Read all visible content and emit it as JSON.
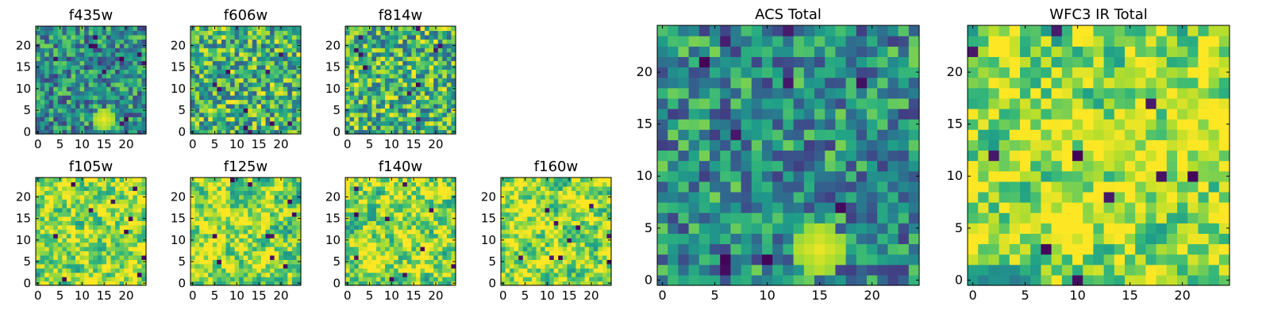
{
  "chart_data": [
    {
      "type": "heatmap",
      "title": "f435w",
      "grid_size": 25,
      "xticks": [
        0,
        5,
        10,
        15,
        20
      ],
      "yticks": [
        0,
        5,
        10,
        15,
        20
      ],
      "colormap": "viridis",
      "seed": 11,
      "texture": "noisy",
      "bright_spots": [
        [
          15,
          3
        ]
      ]
    },
    {
      "type": "heatmap",
      "title": "f606w",
      "grid_size": 25,
      "xticks": [
        0,
        5,
        10,
        15,
        20
      ],
      "yticks": [
        0,
        5,
        10,
        15,
        20
      ],
      "colormap": "viridis",
      "seed": 23,
      "texture": "noisy_bright"
    },
    {
      "type": "heatmap",
      "title": "f814w",
      "grid_size": 25,
      "xticks": [
        0,
        5,
        10,
        15,
        20
      ],
      "yticks": [
        0,
        5,
        10,
        15,
        20
      ],
      "colormap": "viridis",
      "seed": 37,
      "texture": "noisy_bright"
    },
    {
      "type": "heatmap",
      "title": "f105w",
      "grid_size": 25,
      "xticks": [
        0,
        5,
        10,
        15,
        20
      ],
      "yticks": [
        0,
        5,
        10,
        15,
        20
      ],
      "colormap": "viridis",
      "seed": 41,
      "texture": "smooth_bright"
    },
    {
      "type": "heatmap",
      "title": "f125w",
      "grid_size": 25,
      "xticks": [
        0,
        5,
        10,
        15,
        20
      ],
      "yticks": [
        0,
        5,
        10,
        15,
        20
      ],
      "colormap": "viridis",
      "seed": 53,
      "texture": "smooth_bright"
    },
    {
      "type": "heatmap",
      "title": "f140w",
      "grid_size": 25,
      "xticks": [
        0,
        5,
        10,
        15,
        20
      ],
      "yticks": [
        0,
        5,
        10,
        15,
        20
      ],
      "colormap": "viridis",
      "seed": 67,
      "texture": "smooth_bright"
    },
    {
      "type": "heatmap",
      "title": "f160w",
      "grid_size": 25,
      "xticks": [
        0,
        5,
        10,
        15,
        20
      ],
      "yticks": [
        0,
        5,
        10,
        15,
        20
      ],
      "colormap": "viridis",
      "seed": 71,
      "texture": "smooth_bright"
    },
    {
      "type": "heatmap",
      "title": "ACS Total",
      "grid_size": 25,
      "xticks": [
        0,
        5,
        10,
        15,
        20
      ],
      "yticks": [
        0,
        5,
        10,
        15,
        20
      ],
      "colormap": "viridis",
      "seed": 83,
      "texture": "noisy",
      "bright_spots": [
        [
          15,
          3
        ]
      ]
    },
    {
      "type": "heatmap",
      "title": "WFC3 IR Total",
      "grid_size": 25,
      "xticks": [
        0,
        5,
        10,
        15,
        20
      ],
      "yticks": [
        0,
        5,
        10,
        15,
        20
      ],
      "colormap": "viridis",
      "seed": 97,
      "texture": "smooth_bright",
      "bright_spots": [
        [
          13,
          13
        ]
      ]
    }
  ]
}
